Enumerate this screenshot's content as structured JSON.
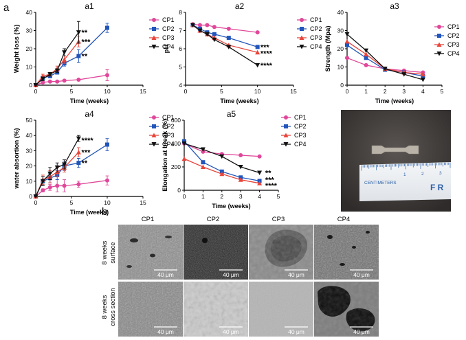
{
  "figure": {
    "panel_a": "a",
    "panel_b": "b"
  },
  "colors": {
    "CP1": "#e0479a",
    "CP2": "#2255bb",
    "CP3": "#e8443a",
    "CP4": "#111111"
  },
  "chart_data": [
    {
      "id": "a1",
      "type": "line",
      "title": "a1",
      "xlabel": "Time (weeks)",
      "ylabel": "Weight loss (%)",
      "xlim": [
        0,
        15
      ],
      "ylim": [
        0,
        40
      ],
      "xticks": [
        0,
        5,
        10,
        15
      ],
      "yticks": [
        0,
        10,
        20,
        30,
        40
      ],
      "legend": [
        "CP1",
        "CP2",
        "CP3",
        "CP4"
      ],
      "series": [
        {
          "name": "CP1",
          "x": [
            0,
            1,
            2,
            3,
            4,
            6,
            10
          ],
          "y": [
            0,
            1.5,
            2,
            2,
            2.5,
            3,
            5.5
          ],
          "err": [
            0,
            0.3,
            0.3,
            0.3,
            0.5,
            0.5,
            3
          ]
        },
        {
          "name": "CP2",
          "x": [
            0,
            1,
            2,
            3,
            4,
            6,
            10
          ],
          "y": [
            0,
            4,
            5,
            7,
            12,
            16,
            31.5
          ],
          "err": [
            0,
            1,
            1,
            1,
            1.5,
            3.5,
            2.5
          ]
        },
        {
          "name": "CP3",
          "x": [
            0,
            1,
            2,
            3,
            4,
            6
          ],
          "y": [
            0,
            5,
            6,
            9,
            14,
            24
          ],
          "err": [
            0,
            1,
            1,
            1.5,
            2,
            3
          ]
        },
        {
          "name": "CP4",
          "x": [
            0,
            1,
            2,
            3,
            4,
            6
          ],
          "y": [
            0,
            3.5,
            6,
            8,
            18,
            29
          ],
          "err": [
            0,
            1,
            1,
            1,
            2,
            6
          ]
        }
      ],
      "annotations": [
        {
          "text": "**",
          "x": 6.4,
          "y": 29
        },
        {
          "text": "***",
          "x": 6.4,
          "y": 24
        },
        {
          "text": "**",
          "x": 6.4,
          "y": 16
        }
      ]
    },
    {
      "id": "a2",
      "type": "line",
      "title": "a2",
      "xlabel": "Time (weeks)",
      "ylabel": "pH",
      "xlim": [
        0,
        15
      ],
      "ylim": [
        4,
        8
      ],
      "xticks": [
        0,
        5,
        10,
        15
      ],
      "yticks": [
        4,
        5,
        6,
        7,
        8
      ],
      "legend": [
        "CP1",
        "CP2",
        "CP3",
        "CP4"
      ],
      "series": [
        {
          "name": "CP1",
          "x": [
            1,
            2,
            3,
            4,
            6,
            10
          ],
          "y": [
            7.35,
            7.3,
            7.3,
            7.2,
            7.1,
            6.9
          ]
        },
        {
          "name": "CP2",
          "x": [
            1,
            2,
            3,
            4,
            6,
            10
          ],
          "y": [
            7.3,
            7.1,
            6.9,
            6.8,
            6.6,
            6.1
          ]
        },
        {
          "name": "CP3",
          "x": [
            1,
            2,
            3,
            4,
            6,
            10
          ],
          "y": [
            7.3,
            7.0,
            6.8,
            6.6,
            6.2,
            5.8
          ]
        },
        {
          "name": "CP4",
          "x": [
            1,
            2,
            3,
            4,
            6,
            10
          ],
          "y": [
            7.3,
            7.0,
            6.8,
            6.5,
            6.1,
            5.1
          ]
        }
      ],
      "annotations": [
        {
          "text": "***",
          "x": 10.4,
          "y": 6.1
        },
        {
          "text": "****",
          "x": 10.4,
          "y": 5.75
        },
        {
          "text": "****",
          "x": 10.4,
          "y": 5.1
        }
      ]
    },
    {
      "id": "a3",
      "type": "line",
      "title": "a3",
      "xlabel": "Time (weeks)",
      "ylabel": "Strength (Mpa)",
      "xlim": [
        0,
        5
      ],
      "ylim": [
        0,
        40
      ],
      "xticks": [
        0,
        1,
        2,
        3,
        4,
        5
      ],
      "yticks": [
        0,
        10,
        20,
        30,
        40
      ],
      "legend": [
        "CP1",
        "CP2",
        "CP3",
        "CP4"
      ],
      "series": [
        {
          "name": "CP1",
          "x": [
            0,
            1,
            2,
            3,
            4
          ],
          "y": [
            15,
            11,
            9,
            8,
            7
          ]
        },
        {
          "name": "CP2",
          "x": [
            0,
            1,
            2,
            3,
            4
          ],
          "y": [
            22,
            15,
            8.5,
            7,
            5
          ]
        },
        {
          "name": "CP3",
          "x": [
            0,
            1,
            2,
            3,
            4
          ],
          "y": [
            24,
            17,
            9,
            7,
            6
          ]
        },
        {
          "name": "CP4",
          "x": [
            0,
            1,
            2,
            3,
            4
          ],
          "y": [
            28,
            19,
            9,
            6,
            3
          ]
        }
      ]
    },
    {
      "id": "a4",
      "type": "line",
      "title": "a4",
      "xlabel": "Time (weeks)",
      "ylabel": "water absortion (%)",
      "xlim": [
        0,
        15
      ],
      "ylim": [
        0,
        50
      ],
      "xticks": [
        0,
        5,
        10,
        15
      ],
      "yticks": [
        0,
        10,
        20,
        30,
        40,
        50
      ],
      "legend": [
        "CP1",
        "CP2",
        "CP3",
        "CP4"
      ],
      "series": [
        {
          "name": "CP1",
          "x": [
            0,
            1,
            2,
            3,
            4,
            6,
            10
          ],
          "y": [
            0,
            4,
            6,
            7,
            7,
            8,
            10.5
          ],
          "err": [
            0,
            1,
            2,
            4,
            4,
            2,
            3
          ]
        },
        {
          "name": "CP2",
          "x": [
            0,
            1,
            2,
            3,
            4,
            6,
            10
          ],
          "y": [
            0,
            10,
            12,
            14,
            20,
            22,
            34
          ],
          "err": [
            0,
            3,
            3,
            3,
            3,
            3,
            4
          ]
        },
        {
          "name": "CP3",
          "x": [
            0,
            1,
            2,
            3,
            4,
            6
          ],
          "y": [
            0,
            11,
            13,
            16,
            19,
            29
          ],
          "err": [
            0,
            3,
            4,
            3,
            3,
            3
          ]
        },
        {
          "name": "CP4",
          "x": [
            0,
            1,
            2,
            3,
            4,
            6
          ],
          "y": [
            0,
            10,
            15,
            19,
            21,
            38
          ],
          "err": [
            0,
            3,
            4,
            3,
            3,
            2
          ]
        }
      ],
      "annotations": [
        {
          "text": "****",
          "x": 6.4,
          "y": 37
        },
        {
          "text": "***",
          "x": 6.4,
          "y": 29
        },
        {
          "text": "**",
          "x": 6.4,
          "y": 22
        }
      ]
    },
    {
      "id": "a5",
      "type": "line",
      "title": "a5",
      "xlabel": "Time (weeks)",
      "ylabel": "Elongation at break (%)",
      "xlim": [
        0,
        5
      ],
      "ylim": [
        0,
        600
      ],
      "xticks": [
        0,
        1,
        2,
        3,
        4,
        5
      ],
      "yticks": [
        0,
        200,
        400,
        600
      ],
      "legend": [
        "CP1",
        "CP2",
        "CP3",
        "CP4"
      ],
      "series": [
        {
          "name": "CP1",
          "x": [
            0,
            1,
            2,
            3,
            4
          ],
          "y": [
            400,
            330,
            310,
            300,
            290
          ]
        },
        {
          "name": "CP2",
          "x": [
            0,
            1,
            2,
            3,
            4
          ],
          "y": [
            420,
            240,
            160,
            110,
            80
          ]
        },
        {
          "name": "CP3",
          "x": [
            0,
            1,
            2,
            3,
            4
          ],
          "y": [
            270,
            200,
            140,
            90,
            60
          ]
        },
        {
          "name": "CP4",
          "x": [
            0,
            1,
            2,
            3,
            4
          ],
          "y": [
            400,
            350,
            290,
            200,
            150
          ]
        }
      ],
      "annotations": [
        {
          "text": "**",
          "x": 4.3,
          "y": 150
        },
        {
          "text": "***",
          "x": 4.3,
          "y": 90
        },
        {
          "text": "****",
          "x": 4.3,
          "y": 40
        }
      ]
    }
  ],
  "photo": {
    "ruler_label": "CENTIMETERS",
    "ruler_numbers": [
      "1",
      "2",
      "3"
    ],
    "ruler_brand": "F R"
  },
  "sem": {
    "columns": [
      "CP1",
      "CP2",
      "CP3",
      "CP4"
    ],
    "rows": [
      {
        "label_line1": "8 weeks",
        "label_line2": "surface"
      },
      {
        "label_line1": "8 weeks",
        "label_line2": "cross section"
      }
    ],
    "scale_label": "40 μm"
  }
}
